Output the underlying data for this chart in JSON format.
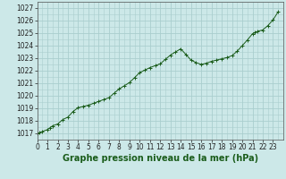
{
  "title": "Graphe pression niveau de la mer (hPa)",
  "x_pts": [
    0,
    0.25,
    0.5,
    1.0,
    1.25,
    1.5,
    2.0,
    2.5,
    3.0,
    3.5,
    4.0,
    4.5,
    5.0,
    5.5,
    6.0,
    6.5,
    7.0,
    7.5,
    8.0,
    8.5,
    9.0,
    9.5,
    10.0,
    10.5,
    11.0,
    11.5,
    12.0,
    12.5,
    13.0,
    13.5,
    14.0,
    14.5,
    15.0,
    15.5,
    16.0,
    16.5,
    17.0,
    17.5,
    18.0,
    18.5,
    19.0,
    19.5,
    20.0,
    20.5,
    21.0,
    21.25,
    21.5,
    22.0,
    22.5,
    23.0,
    23.5
  ],
  "y_pts": [
    1017.0,
    1017.05,
    1017.15,
    1017.3,
    1017.45,
    1017.6,
    1017.75,
    1018.1,
    1018.3,
    1018.75,
    1019.05,
    1019.15,
    1019.25,
    1019.4,
    1019.55,
    1019.7,
    1019.85,
    1020.2,
    1020.55,
    1020.8,
    1021.05,
    1021.45,
    1021.85,
    1022.05,
    1022.25,
    1022.4,
    1022.55,
    1022.9,
    1023.25,
    1023.5,
    1023.75,
    1023.3,
    1022.85,
    1022.65,
    1022.5,
    1022.6,
    1022.75,
    1022.85,
    1022.95,
    1023.05,
    1023.2,
    1023.55,
    1024.0,
    1024.45,
    1024.95,
    1025.05,
    1025.15,
    1025.25,
    1025.6,
    1026.05,
    1026.7
  ],
  "xlim": [
    0,
    23.99
  ],
  "ylim": [
    1016.5,
    1027.5
  ],
  "yticks": [
    1017,
    1018,
    1019,
    1020,
    1021,
    1022,
    1023,
    1024,
    1025,
    1026,
    1027
  ],
  "xticks": [
    0,
    1,
    2,
    3,
    4,
    5,
    6,
    7,
    8,
    9,
    10,
    11,
    12,
    13,
    14,
    15,
    16,
    17,
    18,
    19,
    20,
    21,
    22,
    23
  ],
  "line_color": "#1a5c1a",
  "marker_color": "#1a5c1a",
  "bg_color": "#cce8e8",
  "grid_color": "#aacece",
  "title_color": "#1a5c1a",
  "title_fontsize": 7.0,
  "tick_fontsize": 5.5
}
